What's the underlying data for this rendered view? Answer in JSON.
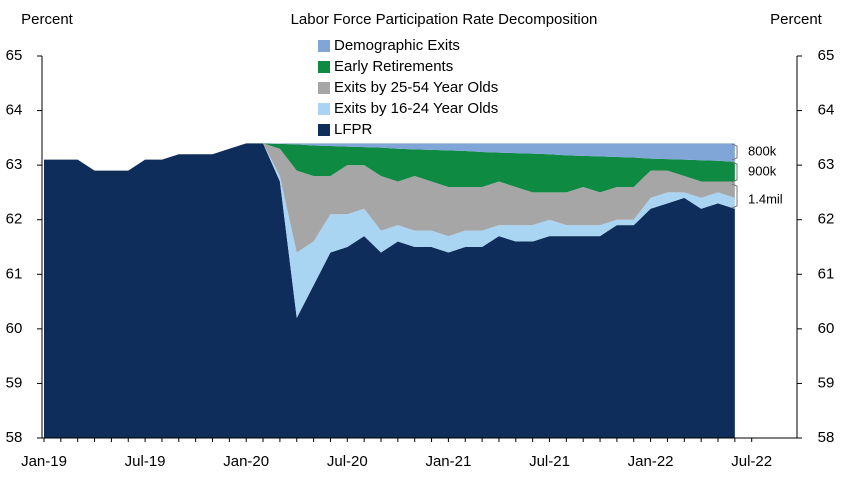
{
  "chart_data": {
    "type": "stacked_area",
    "title": "Labor Force Participation Rate Decomposition",
    "ylabel": "Percent",
    "y2label": "Percent",
    "categories": [
      "Jan-19",
      null,
      null,
      null,
      null,
      null,
      "Jul-19",
      null,
      null,
      null,
      null,
      null,
      "Jan-20",
      null,
      null,
      null,
      null,
      null,
      "Jul-20",
      null,
      null,
      null,
      null,
      null,
      "Jan-21",
      null,
      null,
      null,
      null,
      null,
      "Jul-21",
      null,
      null,
      null,
      null,
      null,
      "Jan-22",
      null,
      null,
      null,
      null,
      null,
      "Jul-22"
    ],
    "ylim": [
      58,
      65
    ],
    "yticks": [
      58,
      59,
      60,
      61,
      62,
      63,
      64,
      65
    ],
    "y2lim": [
      58,
      65
    ],
    "y2ticks": [
      58,
      59,
      60,
      61,
      62,
      63,
      64,
      65
    ],
    "series": [
      {
        "name": "LFPR",
        "color": "#0f2d5a",
        "values": [
          63.1,
          63.1,
          63.1,
          62.9,
          62.9,
          62.9,
          63.1,
          63.1,
          63.2,
          63.2,
          63.2,
          63.3,
          63.4,
          63.4,
          62.7,
          60.2,
          60.8,
          61.4,
          61.5,
          61.7,
          61.4,
          61.6,
          61.5,
          61.5,
          61.4,
          61.5,
          61.5,
          61.7,
          61.6,
          61.6,
          61.7,
          61.7,
          61.7,
          61.7,
          61.9,
          61.9,
          62.2,
          62.3,
          62.4,
          62.2,
          62.3,
          62.2,
          null
        ]
      },
      {
        "name": "Exits by 16-24 Year Olds",
        "color": "#a9d4f2",
        "values": [
          0,
          0,
          0,
          0,
          0,
          0,
          0,
          0,
          0,
          0,
          0,
          0,
          0,
          0,
          0.1,
          1.2,
          0.8,
          0.7,
          0.6,
          0.5,
          0.4,
          0.3,
          0.3,
          0.3,
          0.3,
          0.3,
          0.3,
          0.2,
          0.3,
          0.3,
          0.3,
          0.2,
          0.2,
          0.2,
          0.1,
          0.1,
          0.2,
          0.2,
          0.1,
          0.2,
          0.2,
          0.2,
          null
        ]
      },
      {
        "name": "Exits by 25-54 Year Olds",
        "color": "#a6a6a6",
        "values": [
          0,
          0,
          0,
          0,
          0,
          0,
          0,
          0,
          0,
          0,
          0,
          0,
          0,
          0,
          0.5,
          1.5,
          1.2,
          0.7,
          0.9,
          0.8,
          1.0,
          0.8,
          1.0,
          0.9,
          0.9,
          0.8,
          0.8,
          0.8,
          0.7,
          0.6,
          0.5,
          0.6,
          0.7,
          0.6,
          0.6,
          0.6,
          0.5,
          0.4,
          0.3,
          0.3,
          0.2,
          0.3,
          null
        ]
      },
      {
        "name": "Early Retirements",
        "color": "#0e8a43",
        "values": [
          0,
          0,
          0,
          0,
          0,
          0,
          0,
          0,
          0,
          0,
          0,
          0,
          0,
          0,
          0.09,
          0.48,
          0.56,
          0.55,
          0.34,
          0.33,
          0.52,
          0.6,
          0.49,
          0.58,
          0.67,
          0.66,
          0.64,
          0.53,
          0.62,
          0.71,
          0.7,
          0.68,
          0.57,
          0.66,
          0.55,
          0.54,
          0.22,
          0.21,
          0.3,
          0.39,
          0.38,
          0.36,
          null
        ]
      },
      {
        "name": "Demographic Exits",
        "color": "#7fa6d6",
        "values": [
          0,
          0,
          0,
          0,
          0,
          0,
          0,
          0,
          0,
          0,
          0,
          0,
          0,
          0,
          0.01,
          0.02,
          0.04,
          0.05,
          0.06,
          0.07,
          0.08,
          0.1,
          0.11,
          0.12,
          0.13,
          0.14,
          0.16,
          0.17,
          0.18,
          0.19,
          0.2,
          0.22,
          0.23,
          0.24,
          0.25,
          0.26,
          0.28,
          0.29,
          0.3,
          0.31,
          0.32,
          0.34,
          null
        ]
      }
    ],
    "annotations": [
      "800k",
      "900k",
      "1.4mil"
    ]
  }
}
